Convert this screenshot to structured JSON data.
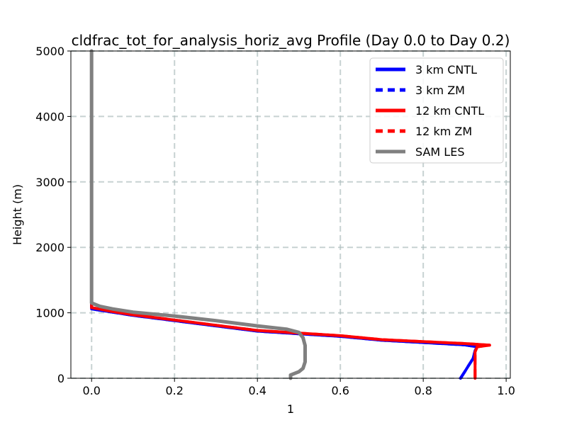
{
  "chart_data": {
    "type": "line",
    "title": "cldfrac_tot_for_analysis_horiz_avg Profile (Day 0.0 to Day 0.2)",
    "xlabel": "1",
    "ylabel": "Height (m)",
    "xlim": [
      -0.05,
      1.01
    ],
    "ylim": [
      0,
      5000
    ],
    "xticks": [
      0.0,
      0.2,
      0.4,
      0.6,
      0.8,
      1.0
    ],
    "xtick_labels": [
      "0.0",
      "0.2",
      "0.4",
      "0.6",
      "0.8",
      "1.0"
    ],
    "yticks": [
      0,
      1000,
      2000,
      3000,
      4000,
      5000
    ],
    "ytick_labels": [
      "0",
      "1000",
      "2000",
      "3000",
      "4000",
      "5000"
    ],
    "grid": true,
    "legend_position": "top-right",
    "series": [
      {
        "name": "3 km CNTL",
        "color": "#0000ff",
        "dash": "solid",
        "points": [
          [
            0.89,
            0
          ],
          [
            0.9,
            100
          ],
          [
            0.91,
            200
          ],
          [
            0.92,
            300
          ],
          [
            0.925,
            420
          ],
          [
            0.93,
            480
          ],
          [
            0.9,
            510
          ],
          [
            0.7,
            580
          ],
          [
            0.6,
            640
          ],
          [
            0.5,
            680
          ],
          [
            0.4,
            720
          ],
          [
            0.3,
            800
          ],
          [
            0.2,
            880
          ],
          [
            0.1,
            960
          ],
          [
            0.05,
            1010
          ],
          [
            0.0,
            1060
          ],
          [
            0.0,
            1200
          ],
          [
            0.0,
            2000
          ],
          [
            0.0,
            3000
          ],
          [
            0.0,
            4000
          ],
          [
            0.0,
            5000
          ]
        ]
      },
      {
        "name": "3 km ZM",
        "color": "#0000ff",
        "dash": "dashed",
        "points": [
          [
            0.89,
            0
          ],
          [
            0.9,
            100
          ],
          [
            0.91,
            200
          ],
          [
            0.92,
            300
          ],
          [
            0.925,
            420
          ],
          [
            0.93,
            480
          ],
          [
            0.9,
            510
          ],
          [
            0.7,
            580
          ],
          [
            0.6,
            640
          ],
          [
            0.5,
            680
          ],
          [
            0.4,
            720
          ],
          [
            0.3,
            800
          ],
          [
            0.2,
            880
          ],
          [
            0.1,
            960
          ],
          [
            0.05,
            1010
          ],
          [
            0.0,
            1060
          ],
          [
            0.0,
            1200
          ],
          [
            0.0,
            2000
          ],
          [
            0.0,
            3000
          ],
          [
            0.0,
            4000
          ],
          [
            0.0,
            5000
          ]
        ]
      },
      {
        "name": "12 km CNTL",
        "color": "#ff0000",
        "dash": "solid",
        "points": [
          [
            0.925,
            0
          ],
          [
            0.925,
            200
          ],
          [
            0.925,
            400
          ],
          [
            0.93,
            480
          ],
          [
            0.96,
            505
          ],
          [
            0.9,
            530
          ],
          [
            0.7,
            590
          ],
          [
            0.6,
            650
          ],
          [
            0.5,
            690
          ],
          [
            0.4,
            730
          ],
          [
            0.3,
            810
          ],
          [
            0.2,
            890
          ],
          [
            0.1,
            970
          ],
          [
            0.05,
            1020
          ],
          [
            0.0,
            1080
          ],
          [
            0.0,
            1120
          ],
          [
            0.0,
            2000
          ],
          [
            0.0,
            3000
          ],
          [
            0.0,
            4000
          ],
          [
            0.0,
            5000
          ]
        ]
      },
      {
        "name": "12 km ZM",
        "color": "#ff0000",
        "dash": "dashed",
        "points": [
          [
            0.925,
            0
          ],
          [
            0.925,
            200
          ],
          [
            0.925,
            400
          ],
          [
            0.93,
            480
          ],
          [
            0.96,
            505
          ],
          [
            0.9,
            530
          ],
          [
            0.7,
            590
          ],
          [
            0.6,
            650
          ],
          [
            0.5,
            690
          ],
          [
            0.4,
            730
          ],
          [
            0.3,
            810
          ],
          [
            0.2,
            890
          ],
          [
            0.1,
            970
          ],
          [
            0.05,
            1020
          ],
          [
            0.0,
            1080
          ],
          [
            0.0,
            1120
          ],
          [
            0.0,
            2000
          ],
          [
            0.0,
            3000
          ],
          [
            0.0,
            4000
          ],
          [
            0.0,
            5000
          ]
        ]
      },
      {
        "name": "SAM LES",
        "color": "#808080",
        "dash": "solid",
        "points": [
          [
            0.48,
            0
          ],
          [
            0.48,
            50
          ],
          [
            0.5,
            100
          ],
          [
            0.51,
            150
          ],
          [
            0.515,
            250
          ],
          [
            0.515,
            350
          ],
          [
            0.515,
            500
          ],
          [
            0.51,
            620
          ],
          [
            0.5,
            700
          ],
          [
            0.47,
            750
          ],
          [
            0.4,
            800
          ],
          [
            0.3,
            880
          ],
          [
            0.2,
            950
          ],
          [
            0.1,
            1010
          ],
          [
            0.05,
            1060
          ],
          [
            0.02,
            1100
          ],
          [
            0.0,
            1150
          ],
          [
            0.0,
            1300
          ],
          [
            0.0,
            2000
          ],
          [
            0.0,
            3000
          ],
          [
            0.0,
            4000
          ],
          [
            0.0,
            5000
          ]
        ]
      }
    ]
  }
}
